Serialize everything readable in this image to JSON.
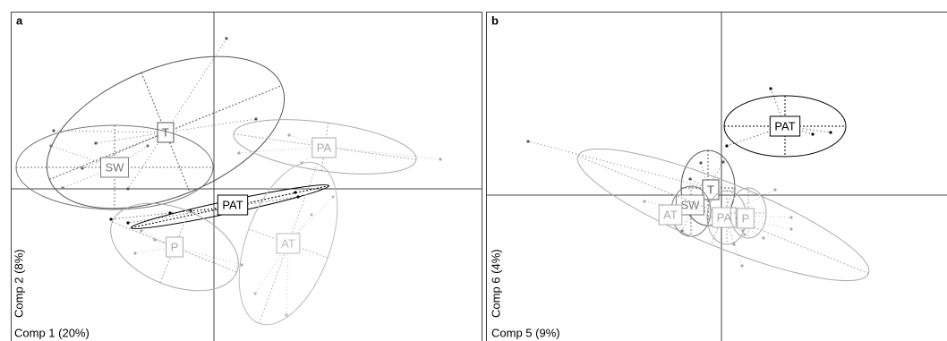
{
  "panels": [
    {
      "label": "a",
      "x_axis": "Comp 1 (20%)",
      "y_axis": "Comp 2 (8%)",
      "groups": [
        "T",
        "SW",
        "PA",
        "PAT",
        "P",
        "AT"
      ]
    },
    {
      "label": "b",
      "x_axis": "Comp 5 (9%)",
      "y_axis": "Comp 6 (4%)",
      "groups": [
        "PAT",
        "T",
        "SW",
        "AT",
        "PA",
        "P"
      ]
    }
  ]
}
